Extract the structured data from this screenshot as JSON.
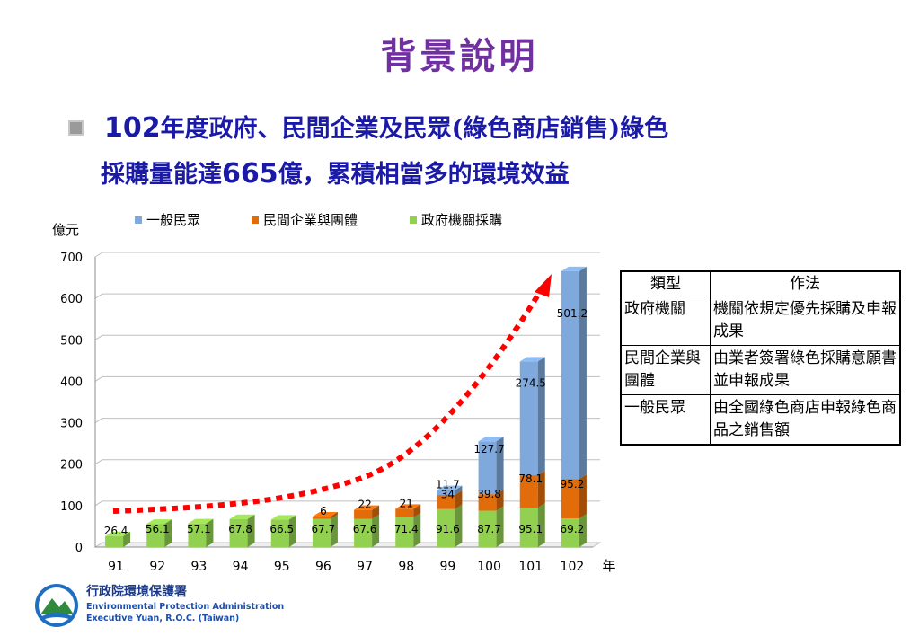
{
  "slide": {
    "title": "背景說明",
    "bullet": {
      "line1_year": "102",
      "line1_text": "年度政府、民間企業及民眾(綠色商店銷售)綠色",
      "line2_text_a": "採購量能達",
      "line2_amount": "665",
      "line2_text_b": "億，累積相當多的環境效益"
    }
  },
  "chart_data": {
    "type": "bar",
    "stacked": true,
    "ylabel": "億元",
    "xlabel": "年",
    "categories": [
      "91",
      "92",
      "93",
      "94",
      "95",
      "96",
      "97",
      "98",
      "99",
      "100",
      "101",
      "102"
    ],
    "ylim": [
      0,
      700
    ],
    "yticks": [
      0,
      100,
      200,
      300,
      400,
      500,
      600,
      700
    ],
    "grid": true,
    "legend_position": "top",
    "series": [
      {
        "name": "政府機關採購",
        "color": "#92d050",
        "values": [
          26.4,
          56.1,
          57.1,
          67.8,
          66.5,
          67.7,
          67.6,
          71.4,
          91.6,
          87.7,
          95.1,
          69.2
        ]
      },
      {
        "name": "民間企業與團體",
        "color": "#e36c0a",
        "values": [
          0,
          0,
          0,
          0,
          0,
          6,
          22,
          21,
          34,
          39.8,
          78.1,
          95.2
        ]
      },
      {
        "name": "一般民眾",
        "color": "#7fa9dc",
        "values": [
          0,
          0,
          0,
          0,
          0,
          0,
          0,
          0,
          11.7,
          127.7,
          274.5,
          501.2
        ]
      }
    ],
    "legend_order": [
      "一般民眾",
      "民間企業與團體",
      "政府機關採購"
    ],
    "data_labels": [
      {
        "series": 0,
        "labels": [
          "26.4",
          "56.1",
          "57.1",
          "67.8",
          "66.5",
          "67.7",
          "67.6",
          "71.4",
          "91.6",
          "87.7",
          "95.1",
          "69.2"
        ]
      },
      {
        "series": 1,
        "labels": [
          "",
          "",
          "",
          "",
          "",
          "6",
          "22",
          "21",
          "34",
          "39.8",
          "78.1",
          "95.2"
        ]
      },
      {
        "series": 2,
        "labels": [
          "",
          "",
          "",
          "",
          "",
          "",
          "",
          "",
          "11.7",
          "127.7",
          "274.5",
          "501.2"
        ]
      }
    ],
    "annotation": {
      "type": "trend-arrow",
      "color": "#ff0000",
      "style": "dotted"
    }
  },
  "table": {
    "headers": [
      "類型",
      "作法"
    ],
    "rows": [
      {
        "type": "政府機關",
        "method": "機關依規定優先採購及申報成果"
      },
      {
        "type": "民間企業與團體",
        "method": "由業者簽署綠色採購意願書並申報成果"
      },
      {
        "type": "一般民眾",
        "method": "由全國綠色商店申報綠色商品之銷售額"
      }
    ]
  },
  "logo": {
    "name_cn": "行政院環境保護署",
    "name_en_1": "Environmental Protection Administration",
    "name_en_2": "Executive Yuan, R.O.C. (Taiwan)"
  }
}
